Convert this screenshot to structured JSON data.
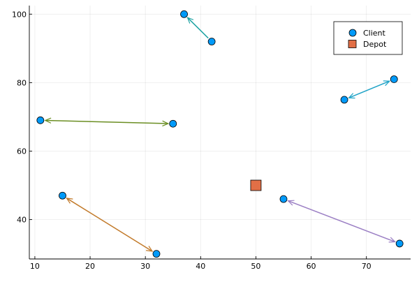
{
  "colors": {
    "client": "#009af9",
    "depot": "#e26f46",
    "marker_stroke": "#000000"
  },
  "chart_data": {
    "type": "scatter",
    "title": "",
    "xlabel": "",
    "ylabel": "",
    "xlim": [
      9,
      78
    ],
    "ylim": [
      28.5,
      102.5
    ],
    "xticks": [
      10,
      20,
      30,
      40,
      50,
      60,
      70
    ],
    "yticks": [
      40,
      60,
      80,
      100
    ],
    "grid": true,
    "legend": {
      "placement": "top-right",
      "entries": [
        {
          "label": "Client",
          "marker": "circle",
          "color": "#009af9"
        },
        {
          "label": "Depot",
          "marker": "square",
          "color": "#e26f46"
        }
      ]
    },
    "series": [
      {
        "name": "Client",
        "marker": "circle",
        "color": "#009af9",
        "points": [
          {
            "x": 37,
            "y": 100
          },
          {
            "x": 42,
            "y": 92
          },
          {
            "x": 75,
            "y": 81
          },
          {
            "x": 66,
            "y": 75
          },
          {
            "x": 11,
            "y": 69
          },
          {
            "x": 35,
            "y": 68
          },
          {
            "x": 15,
            "y": 47
          },
          {
            "x": 32,
            "y": 30
          },
          {
            "x": 55,
            "y": 46
          },
          {
            "x": 76,
            "y": 33
          }
        ]
      },
      {
        "name": "Depot",
        "marker": "square",
        "color": "#e26f46",
        "points": [
          {
            "x": 50,
            "y": 50
          }
        ]
      }
    ],
    "arrows": [
      {
        "from": [
          42,
          92
        ],
        "to": [
          37,
          100
        ],
        "color": "#1fa3a3",
        "heads": "end"
      },
      {
        "from": [
          66,
          75
        ],
        "to": [
          75,
          81
        ],
        "color": "#1fa3c7",
        "heads": "both"
      },
      {
        "from": [
          35,
          68
        ],
        "to": [
          11,
          69
        ],
        "color": "#6b8e23",
        "heads": "both"
      },
      {
        "from": [
          32,
          30
        ],
        "to": [
          15,
          47
        ],
        "color": "#c27a2a",
        "heads": "both"
      },
      {
        "from": [
          76,
          33
        ],
        "to": [
          55,
          46
        ],
        "color": "#9b7fc4",
        "heads": "both"
      }
    ]
  }
}
